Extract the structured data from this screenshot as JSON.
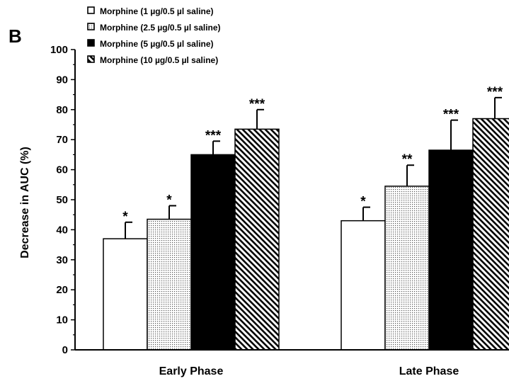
{
  "panel_label": "B",
  "chart_data": {
    "type": "bar",
    "title": "",
    "xlabel": "",
    "ylabel": "Decrease in AUC (%)",
    "ylim": [
      0,
      100
    ],
    "yticks": [
      "0",
      "10",
      "20",
      "30",
      "40",
      "50",
      "60",
      "70",
      "80",
      "90",
      "100"
    ],
    "grid": false,
    "legend_position": "top-left",
    "categories": [
      "Early Phase",
      "Late Phase"
    ],
    "series": [
      {
        "name": "Morphine (1 µg/0.5 µl saline)",
        "pattern": "white",
        "values": [
          37,
          43
        ],
        "errors": [
          5.5,
          4.5
        ],
        "significance": [
          "*",
          "*"
        ]
      },
      {
        "name": "Morphine (2.5 µg/0.5 µl saline)",
        "pattern": "dots",
        "values": [
          43.5,
          54.5
        ],
        "errors": [
          4.5,
          7
        ],
        "significance": [
          "*",
          "**"
        ]
      },
      {
        "name": "Morphine (5 µg/0.5 µl saline)",
        "pattern": "black",
        "values": [
          65,
          66.5
        ],
        "errors": [
          4.5,
          10
        ],
        "significance": [
          "***",
          "***"
        ]
      },
      {
        "name": "Morphine (10 µg/0.5 µl saline)",
        "pattern": "diagonal",
        "values": [
          73.5,
          77
        ],
        "errors": [
          6.5,
          7
        ],
        "significance": [
          "***",
          "***"
        ]
      }
    ],
    "colors": {
      "axis": "#000000",
      "bar_edge": "#000000",
      "dot": "#555555"
    }
  }
}
